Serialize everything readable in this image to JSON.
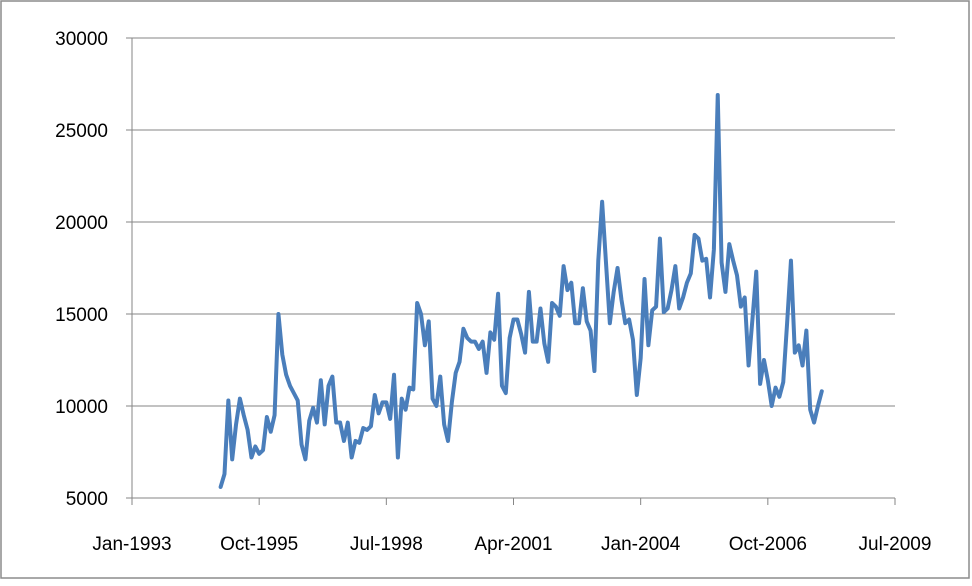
{
  "chart_data": {
    "type": "line",
    "x": [
      "1994-12",
      "1995-01",
      "1995-02",
      "1995-03",
      "1995-04",
      "1995-05",
      "1995-06",
      "1995-07",
      "1995-08",
      "1995-09",
      "1995-10",
      "1995-11",
      "1995-12",
      "1996-01",
      "1996-02",
      "1996-03",
      "1996-04",
      "1996-05",
      "1996-06",
      "1996-07",
      "1996-08",
      "1996-09",
      "1996-10",
      "1996-11",
      "1996-12",
      "1997-01",
      "1997-02",
      "1997-03",
      "1997-04",
      "1997-05",
      "1997-06",
      "1997-07",
      "1997-08",
      "1997-09",
      "1997-10",
      "1997-11",
      "1997-12",
      "1998-01",
      "1998-02",
      "1998-03",
      "1998-04",
      "1998-05",
      "1998-06",
      "1998-07",
      "1998-08",
      "1998-09",
      "1998-10",
      "1998-11",
      "1998-12",
      "1999-01",
      "1999-02",
      "1999-03",
      "1999-04",
      "1999-05",
      "1999-06",
      "1999-07",
      "1999-08",
      "1999-09",
      "1999-10",
      "1999-11",
      "1999-12",
      "2000-01",
      "2000-02",
      "2000-03",
      "2000-04",
      "2000-05",
      "2000-06",
      "2000-07",
      "2000-08",
      "2000-09",
      "2000-10",
      "2000-11",
      "2000-12",
      "2001-01",
      "2001-02",
      "2001-03",
      "2001-04",
      "2001-05",
      "2001-06",
      "2001-07",
      "2001-08",
      "2001-09",
      "2001-10",
      "2001-11",
      "2001-12",
      "2002-01",
      "2002-02",
      "2002-03",
      "2002-04",
      "2002-05",
      "2002-06",
      "2002-07",
      "2002-08",
      "2002-09",
      "2002-10",
      "2002-11",
      "2002-12",
      "2003-01",
      "2003-02",
      "2003-03",
      "2003-04",
      "2003-05",
      "2003-06",
      "2003-07",
      "2003-08",
      "2003-09",
      "2003-10",
      "2003-11",
      "2003-12",
      "2004-01",
      "2004-02",
      "2004-03",
      "2004-04",
      "2004-05",
      "2004-06",
      "2004-07",
      "2004-08",
      "2004-09",
      "2004-10",
      "2004-11",
      "2004-12",
      "2005-01",
      "2005-02",
      "2005-03",
      "2005-04",
      "2005-05",
      "2005-06",
      "2005-07",
      "2005-08",
      "2005-09",
      "2005-10",
      "2005-11",
      "2005-12",
      "2006-01",
      "2006-02",
      "2006-03",
      "2006-04",
      "2006-05",
      "2006-06",
      "2006-07",
      "2006-08",
      "2006-09",
      "2006-10",
      "2006-11",
      "2006-12",
      "2007-01",
      "2007-02",
      "2007-03",
      "2007-04",
      "2007-05",
      "2007-06",
      "2007-07",
      "2007-08",
      "2007-09",
      "2007-10",
      "2007-11",
      "2007-12"
    ],
    "values": [
      5600,
      6300,
      10300,
      7100,
      9000,
      10400,
      9500,
      8700,
      7200,
      7800,
      7400,
      7600,
      9400,
      8600,
      9500,
      15000,
      12800,
      11700,
      11100,
      10700,
      10300,
      7900,
      7100,
      9200,
      9900,
      9100,
      11400,
      9000,
      11100,
      11600,
      9100,
      9100,
      8100,
      9100,
      7200,
      8100,
      8000,
      8800,
      8700,
      8900,
      10600,
      9600,
      10200,
      10200,
      9300,
      11700,
      7200,
      10400,
      9800,
      11000,
      10900,
      15600,
      15000,
      13300,
      14600,
      10400,
      10000,
      11600,
      9000,
      8100,
      10200,
      11800,
      12400,
      14200,
      13700,
      13500,
      13500,
      13100,
      13500,
      11800,
      14000,
      13600,
      16100,
      11100,
      10700,
      13700,
      14700,
      14700,
      13900,
      12900,
      16200,
      13500,
      13500,
      15300,
      13400,
      12400,
      15600,
      15400,
      14900,
      17600,
      16300,
      16700,
      14500,
      14500,
      16400,
      14600,
      14100,
      11900,
      17900,
      21100,
      17800,
      14500,
      16200,
      17500,
      15800,
      14500,
      14700,
      13600,
      10600,
      12600,
      16900,
      13300,
      15200,
      15400,
      19100,
      15100,
      15300,
      16300,
      17600,
      15300,
      15900,
      16700,
      17200,
      19300,
      19100,
      17900,
      18000,
      15900,
      18500,
      26900,
      17800,
      16200,
      18800,
      17900,
      17100,
      15400,
      15900,
      12200,
      14700,
      17300,
      11200,
      12500,
      11400,
      10000,
      11000,
      10500,
      11300,
      14500,
      17900,
      12900,
      13300,
      12200,
      14100,
      9800,
      9100,
      10000,
      10800
    ],
    "color": "#4a7ebb",
    "xlim": [
      "1993-01",
      "2009-07"
    ],
    "xticks": [
      {
        "value": "1993-01",
        "label": "Jan-1993"
      },
      {
        "value": "1995-10",
        "label": "Oct-1995"
      },
      {
        "value": "1998-07",
        "label": "Jul-1998"
      },
      {
        "value": "2001-04",
        "label": "Apr-2001"
      },
      {
        "value": "2004-01",
        "label": "Jan-2004"
      },
      {
        "value": "2006-10",
        "label": "Oct-2006"
      },
      {
        "value": "2009-07",
        "label": "Jul-2009"
      }
    ],
    "ylim": [
      5000,
      30000
    ],
    "yticks": [
      5000,
      10000,
      15000,
      20000,
      25000,
      30000
    ],
    "grid": true
  }
}
